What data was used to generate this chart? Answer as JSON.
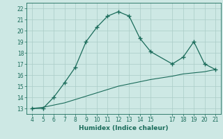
{
  "xlabel": "Humidex (Indice chaleur)",
  "x_curve1": [
    4,
    5,
    6,
    7,
    8,
    9,
    10,
    11,
    12,
    13,
    14,
    15,
    17,
    18,
    19,
    20,
    21
  ],
  "y_curve1": [
    13,
    13,
    14,
    15.3,
    16.7,
    19,
    20.3,
    21.3,
    21.7,
    21.3,
    19.3,
    18.1,
    17.0,
    17.6,
    19.0,
    17.0,
    16.5
  ],
  "x_curve2": [
    4,
    5,
    6,
    7,
    8,
    9,
    10,
    11,
    12,
    13,
    14,
    15,
    17,
    18,
    19,
    20,
    21
  ],
  "y_curve2": [
    13.0,
    13.1,
    13.3,
    13.5,
    13.8,
    14.1,
    14.4,
    14.7,
    15.0,
    15.2,
    15.4,
    15.6,
    15.9,
    16.1,
    16.2,
    16.3,
    16.5
  ],
  "line_color": "#1a6b5a",
  "bg_color": "#cde8e4",
  "grid_color": "#aaccc7",
  "ylim": [
    12.5,
    22.5
  ],
  "xlim": [
    3.5,
    21.5
  ],
  "yticks": [
    13,
    14,
    15,
    16,
    17,
    18,
    19,
    20,
    21,
    22
  ],
  "xticks": [
    4,
    5,
    6,
    7,
    8,
    9,
    10,
    11,
    12,
    13,
    14,
    15,
    17,
    18,
    19,
    20,
    21
  ]
}
